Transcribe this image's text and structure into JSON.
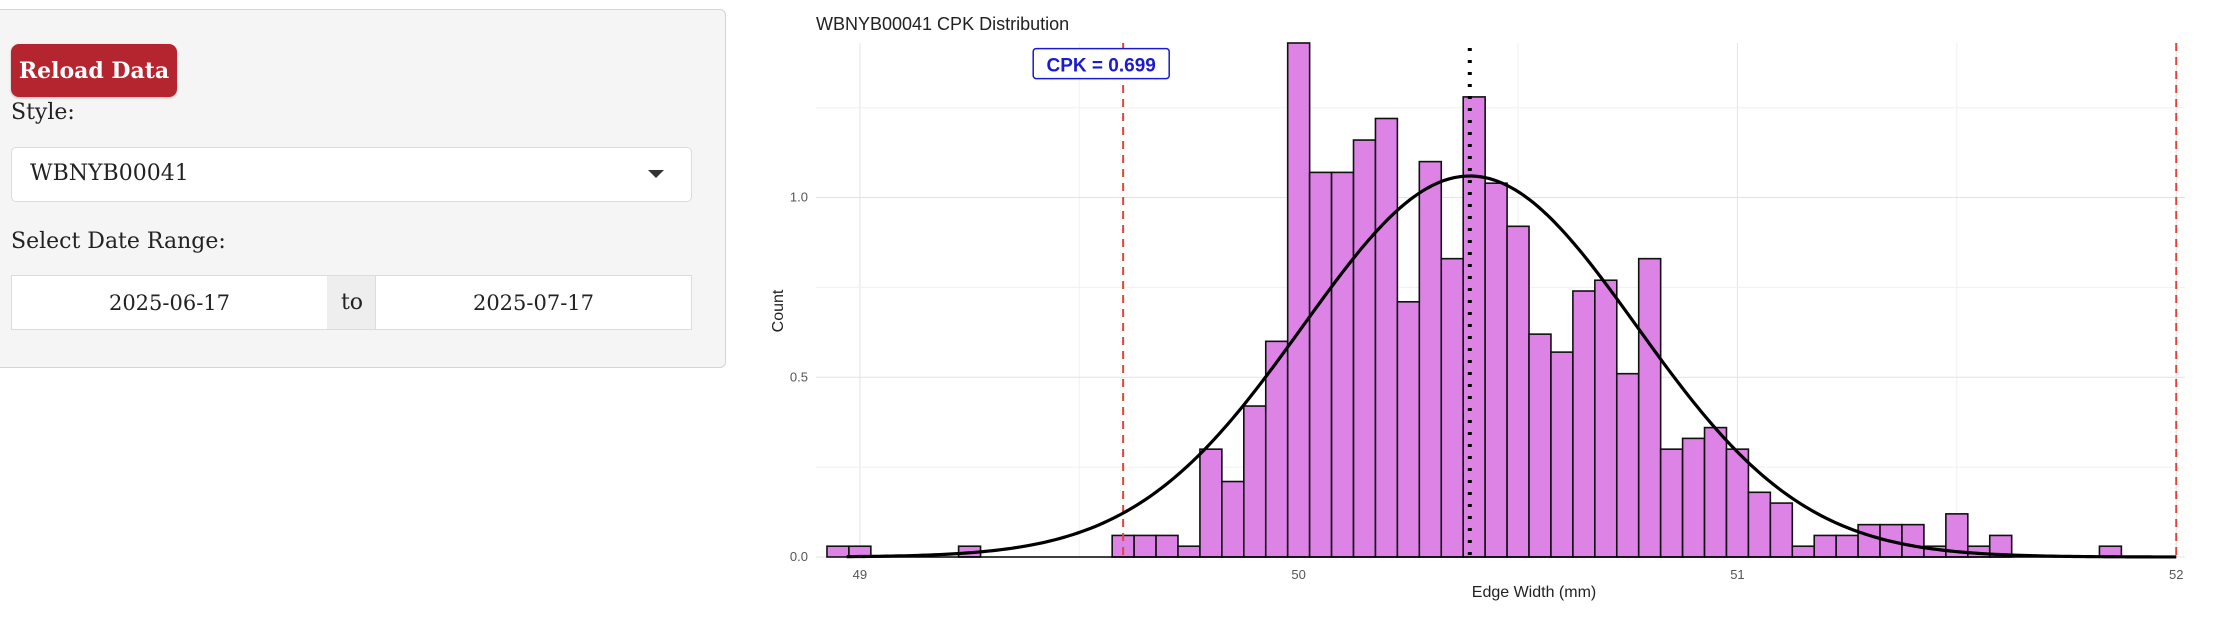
{
  "sidebar": {
    "reload_label": "Reload Data",
    "style_label": "Style:",
    "style_value": "WBNYB00041",
    "date_label": "Select Date Range:",
    "date_start": "2025-06-17",
    "date_sep": "to",
    "date_end": "2025-07-17"
  },
  "colors": {
    "button": "#b5252f",
    "bar_fill": "#dd83e6",
    "spec_line": "#e0443a",
    "cpk_text": "#1a1ad0"
  },
  "chart_data": {
    "type": "bar",
    "title": "WBNYB00041 CPK Distribution",
    "xlabel": "Edge Width (mm)",
    "ylabel": "Count",
    "xlim": [
      48.9,
      52.02
    ],
    "ylim": [
      0,
      1.43
    ],
    "x_ticks": [
      "49",
      "50",
      "51",
      "52"
    ],
    "y_ticks": [
      "0.0",
      "0.5",
      "1.0"
    ],
    "bin_width": 0.05,
    "bins": [
      {
        "x": 48.95,
        "y": 0.03
      },
      {
        "x": 49.0,
        "y": 0.03
      },
      {
        "x": 49.25,
        "y": 0.03
      },
      {
        "x": 49.6,
        "y": 0.06
      },
      {
        "x": 49.65,
        "y": 0.06
      },
      {
        "x": 49.7,
        "y": 0.06
      },
      {
        "x": 49.75,
        "y": 0.03
      },
      {
        "x": 49.8,
        "y": 0.3
      },
      {
        "x": 49.85,
        "y": 0.21
      },
      {
        "x": 49.9,
        "y": 0.42
      },
      {
        "x": 49.95,
        "y": 0.6
      },
      {
        "x": 50.0,
        "y": 1.43
      },
      {
        "x": 50.05,
        "y": 1.07
      },
      {
        "x": 50.1,
        "y": 1.07
      },
      {
        "x": 50.15,
        "y": 1.16
      },
      {
        "x": 50.2,
        "y": 1.22
      },
      {
        "x": 50.25,
        "y": 0.71
      },
      {
        "x": 50.3,
        "y": 1.1
      },
      {
        "x": 50.35,
        "y": 0.83
      },
      {
        "x": 50.4,
        "y": 1.28
      },
      {
        "x": 50.45,
        "y": 1.04
      },
      {
        "x": 50.5,
        "y": 0.92
      },
      {
        "x": 50.55,
        "y": 0.62
      },
      {
        "x": 50.6,
        "y": 0.57
      },
      {
        "x": 50.65,
        "y": 0.74
      },
      {
        "x": 50.7,
        "y": 0.77
      },
      {
        "x": 50.75,
        "y": 0.51
      },
      {
        "x": 50.8,
        "y": 0.83
      },
      {
        "x": 50.85,
        "y": 0.3
      },
      {
        "x": 50.9,
        "y": 0.33
      },
      {
        "x": 50.95,
        "y": 0.36
      },
      {
        "x": 51.0,
        "y": 0.3
      },
      {
        "x": 51.05,
        "y": 0.18
      },
      {
        "x": 51.1,
        "y": 0.15
      },
      {
        "x": 51.15,
        "y": 0.03
      },
      {
        "x": 51.2,
        "y": 0.06
      },
      {
        "x": 51.25,
        "y": 0.06
      },
      {
        "x": 51.3,
        "y": 0.09
      },
      {
        "x": 51.35,
        "y": 0.09
      },
      {
        "x": 51.4,
        "y": 0.09
      },
      {
        "x": 51.45,
        "y": 0.03
      },
      {
        "x": 51.5,
        "y": 0.12
      },
      {
        "x": 51.55,
        "y": 0.03
      },
      {
        "x": 51.6,
        "y": 0.06
      },
      {
        "x": 51.85,
        "y": 0.03
      }
    ],
    "normal_curve": {
      "mean": 50.39,
      "sd": 0.38,
      "peak": 1.06
    },
    "curve_x_range": [
      48.97,
      52.0
    ],
    "spec_limits": [
      49.6,
      52.0
    ],
    "mean_line": 50.39,
    "annotation": {
      "text": "CPK = 0.699",
      "x": 49.55,
      "y": 1.37
    },
    "grid": true
  }
}
